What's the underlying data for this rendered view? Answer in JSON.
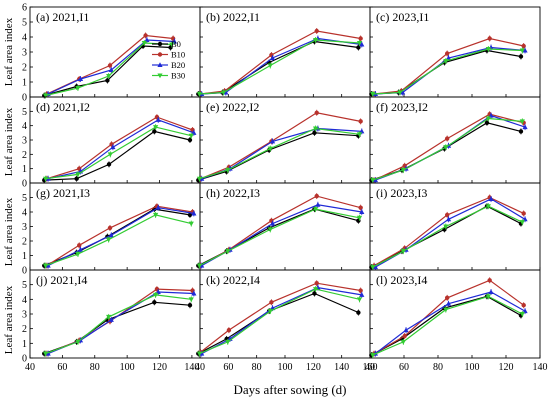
{
  "figure": {
    "ylabel": "Leaf area index",
    "xlabel": "Days after sowing (d)"
  },
  "colors": {
    "B0": "#000000",
    "B10": "#b8322c",
    "B20": "#1f2ad6",
    "B30": "#33cc33"
  },
  "markers": {
    "B0": "circle",
    "B10": "circle",
    "B20": "triangle",
    "B30": "triangle-down"
  },
  "legend": {
    "placement": "panel (a) right-center",
    "entries": [
      "B0",
      "B10",
      "B20",
      "B30"
    ]
  },
  "axes": {
    "2021": {
      "x_range": [
        40,
        145
      ],
      "x_ticks": [
        40,
        60,
        80,
        100,
        120,
        140
      ]
    },
    "2022": {
      "x_range": [
        40,
        160
      ],
      "x_ticks": [
        40,
        60,
        80,
        100,
        120,
        140,
        160
      ]
    },
    "2023": {
      "x_range": [
        40,
        140
      ],
      "x_ticks": [
        40,
        60,
        80,
        100,
        120,
        140
      ]
    },
    "rows": [
      {
        "y_range": [
          0,
          6
        ],
        "y_ticks": [
          0,
          1,
          2,
          3,
          4,
          5,
          6
        ]
      },
      {
        "y_range": [
          0,
          6
        ],
        "y_ticks": [
          0,
          1,
          2,
          3,
          4,
          5
        ]
      },
      {
        "y_range": [
          0,
          6
        ],
        "y_ticks": [
          0,
          1,
          2,
          3,
          4,
          5
        ]
      },
      {
        "y_range": [
          0,
          6
        ],
        "y_ticks": [
          0,
          1,
          2,
          3,
          4,
          5
        ]
      }
    ]
  },
  "chart_data": [
    {
      "type": "line",
      "title": "(a) 2021,I1",
      "x": [
        50,
        70,
        89,
        111,
        128
      ],
      "series": [
        {
          "name": "B0",
          "values": [
            0.1,
            0.7,
            1.1,
            3.4,
            3.3
          ]
        },
        {
          "name": "B10",
          "values": [
            0.2,
            1.2,
            2.1,
            4.1,
            3.9
          ]
        },
        {
          "name": "B20",
          "values": [
            0.2,
            1.2,
            1.8,
            3.8,
            3.7
          ]
        },
        {
          "name": "B30",
          "values": [
            0.1,
            0.6,
            1.4,
            3.6,
            3.5
          ]
        }
      ]
    },
    {
      "type": "line",
      "title": "(b) 2022,I1",
      "x": [
        40,
        57,
        90,
        122,
        153
      ],
      "series": [
        {
          "name": "B0",
          "values": [
            0.2,
            0.3,
            2.3,
            3.7,
            3.3
          ]
        },
        {
          "name": "B10",
          "values": [
            0.2,
            0.4,
            2.8,
            4.4,
            3.9
          ]
        },
        {
          "name": "B20",
          "values": [
            0.2,
            0.3,
            2.6,
            3.9,
            3.5
          ]
        },
        {
          "name": "B30",
          "values": [
            0.2,
            0.3,
            2.1,
            3.8,
            3.6
          ]
        }
      ]
    },
    {
      "type": "line",
      "title": "(c) 2023,I1",
      "x": [
        42,
        58,
        85,
        110,
        130
      ],
      "series": [
        {
          "name": "B0",
          "values": [
            0.2,
            0.3,
            2.3,
            3.1,
            2.7
          ]
        },
        {
          "name": "B10",
          "values": [
            0.2,
            0.4,
            2.9,
            3.9,
            3.4
          ]
        },
        {
          "name": "B20",
          "values": [
            0.2,
            0.3,
            2.6,
            3.3,
            3.1
          ]
        },
        {
          "name": "B30",
          "values": [
            0.2,
            0.3,
            2.4,
            3.2,
            3.1
          ]
        }
      ]
    },
    {
      "type": "line",
      "title": "(d) 2021,I2",
      "x": [
        50,
        70,
        90,
        118,
        140
      ],
      "series": [
        {
          "name": "B0",
          "values": [
            0.2,
            0.3,
            1.3,
            3.6,
            3.0
          ]
        },
        {
          "name": "B10",
          "values": [
            0.3,
            1.0,
            2.7,
            4.6,
            3.7
          ]
        },
        {
          "name": "B20",
          "values": [
            0.3,
            0.8,
            2.5,
            4.4,
            3.5
          ]
        },
        {
          "name": "B30",
          "values": [
            0.3,
            0.6,
            2.0,
            3.9,
            3.3
          ]
        }
      ]
    },
    {
      "type": "line",
      "title": "(e) 2022,I2",
      "x": [
        40,
        60,
        90,
        122,
        153
      ],
      "series": [
        {
          "name": "B0",
          "values": [
            0.2,
            0.8,
            2.3,
            3.5,
            3.3
          ]
        },
        {
          "name": "B10",
          "values": [
            0.3,
            1.1,
            2.9,
            4.9,
            4.3
          ]
        },
        {
          "name": "B20",
          "values": [
            0.3,
            1.0,
            2.9,
            3.8,
            3.6
          ]
        },
        {
          "name": "B30",
          "values": [
            0.3,
            0.9,
            2.4,
            3.8,
            3.4
          ]
        }
      ]
    },
    {
      "type": "line",
      "title": "(f) 2023,I2",
      "x": [
        42,
        60,
        85,
        110,
        130
      ],
      "series": [
        {
          "name": "B0",
          "values": [
            0.2,
            0.9,
            2.4,
            4.2,
            3.6
          ]
        },
        {
          "name": "B10",
          "values": [
            0.2,
            1.2,
            3.1,
            4.8,
            4.2
          ]
        },
        {
          "name": "B20",
          "values": [
            0.2,
            1.0,
            2.6,
            4.7,
            3.9
          ]
        },
        {
          "name": "B30",
          "values": [
            0.2,
            0.9,
            2.5,
            4.5,
            4.3
          ]
        }
      ]
    },
    {
      "type": "line",
      "title": "(g) 2021,I3",
      "x": [
        50,
        70,
        89,
        118,
        140
      ],
      "series": [
        {
          "name": "B0",
          "values": [
            0.3,
            1.2,
            2.3,
            4.2,
            3.8
          ]
        },
        {
          "name": "B10",
          "values": [
            0.3,
            1.7,
            2.9,
            4.4,
            4.0
          ]
        },
        {
          "name": "B20",
          "values": [
            0.3,
            1.4,
            2.4,
            4.3,
            3.9
          ]
        },
        {
          "name": "B30",
          "values": [
            0.3,
            1.1,
            2.1,
            3.8,
            3.2
          ]
        }
      ]
    },
    {
      "type": "line",
      "title": "(h) 2022,I3",
      "x": [
        40,
        60,
        90,
        122,
        153
      ],
      "series": [
        {
          "name": "B0",
          "values": [
            0.3,
            1.3,
            2.9,
            4.2,
            3.4
          ]
        },
        {
          "name": "B10",
          "values": [
            0.3,
            1.4,
            3.4,
            5.1,
            4.3
          ]
        },
        {
          "name": "B20",
          "values": [
            0.3,
            1.4,
            3.2,
            4.5,
            4.0
          ]
        },
        {
          "name": "B30",
          "values": [
            0.3,
            1.3,
            2.8,
            4.2,
            3.6
          ]
        }
      ]
    },
    {
      "type": "line",
      "title": "(i) 2023,I3",
      "x": [
        42,
        60,
        85,
        110,
        130
      ],
      "series": [
        {
          "name": "B0",
          "values": [
            0.2,
            1.3,
            2.8,
            4.4,
            3.2
          ]
        },
        {
          "name": "B10",
          "values": [
            0.3,
            1.5,
            3.8,
            5.0,
            3.9
          ]
        },
        {
          "name": "B20",
          "values": [
            0.2,
            1.4,
            3.5,
            4.9,
            3.5
          ]
        },
        {
          "name": "B30",
          "values": [
            0.2,
            1.3,
            3.0,
            4.4,
            3.3
          ]
        }
      ]
    },
    {
      "type": "line",
      "title": "(j) 2021,I4",
      "x": [
        50,
        70,
        89,
        118,
        140
      ],
      "series": [
        {
          "name": "B0",
          "values": [
            0.3,
            1.1,
            2.6,
            3.8,
            3.6
          ]
        },
        {
          "name": "B10",
          "values": [
            0.3,
            1.2,
            2.5,
            4.7,
            4.6
          ]
        },
        {
          "name": "B20",
          "values": [
            0.3,
            1.2,
            2.6,
            4.5,
            4.4
          ]
        },
        {
          "name": "B30",
          "values": [
            0.3,
            1.1,
            2.8,
            4.3,
            4.0
          ]
        }
      ]
    },
    {
      "type": "line",
      "title": "(k) 2022,I4",
      "x": [
        40,
        60,
        90,
        122,
        153
      ],
      "series": [
        {
          "name": "B0",
          "values": [
            0.3,
            1.3,
            3.2,
            4.4,
            3.1
          ]
        },
        {
          "name": "B10",
          "values": [
            0.4,
            1.9,
            3.8,
            5.1,
            4.6
          ]
        },
        {
          "name": "B20",
          "values": [
            0.3,
            1.3,
            3.4,
            4.8,
            4.3
          ]
        },
        {
          "name": "B30",
          "values": [
            0.3,
            1.1,
            3.2,
            4.7,
            4.0
          ]
        }
      ]
    },
    {
      "type": "line",
      "title": "(l) 2023,I4",
      "x": [
        42,
        60,
        85,
        110,
        130
      ],
      "series": [
        {
          "name": "B0",
          "values": [
            0.2,
            1.3,
            3.4,
            4.2,
            2.9
          ]
        },
        {
          "name": "B10",
          "values": [
            0.3,
            1.5,
            4.1,
            5.3,
            3.6
          ]
        },
        {
          "name": "B20",
          "values": [
            0.3,
            1.9,
            3.7,
            4.5,
            3.2
          ]
        },
        {
          "name": "B30",
          "values": [
            0.2,
            1.1,
            3.3,
            4.2,
            3.0
          ]
        }
      ]
    }
  ]
}
